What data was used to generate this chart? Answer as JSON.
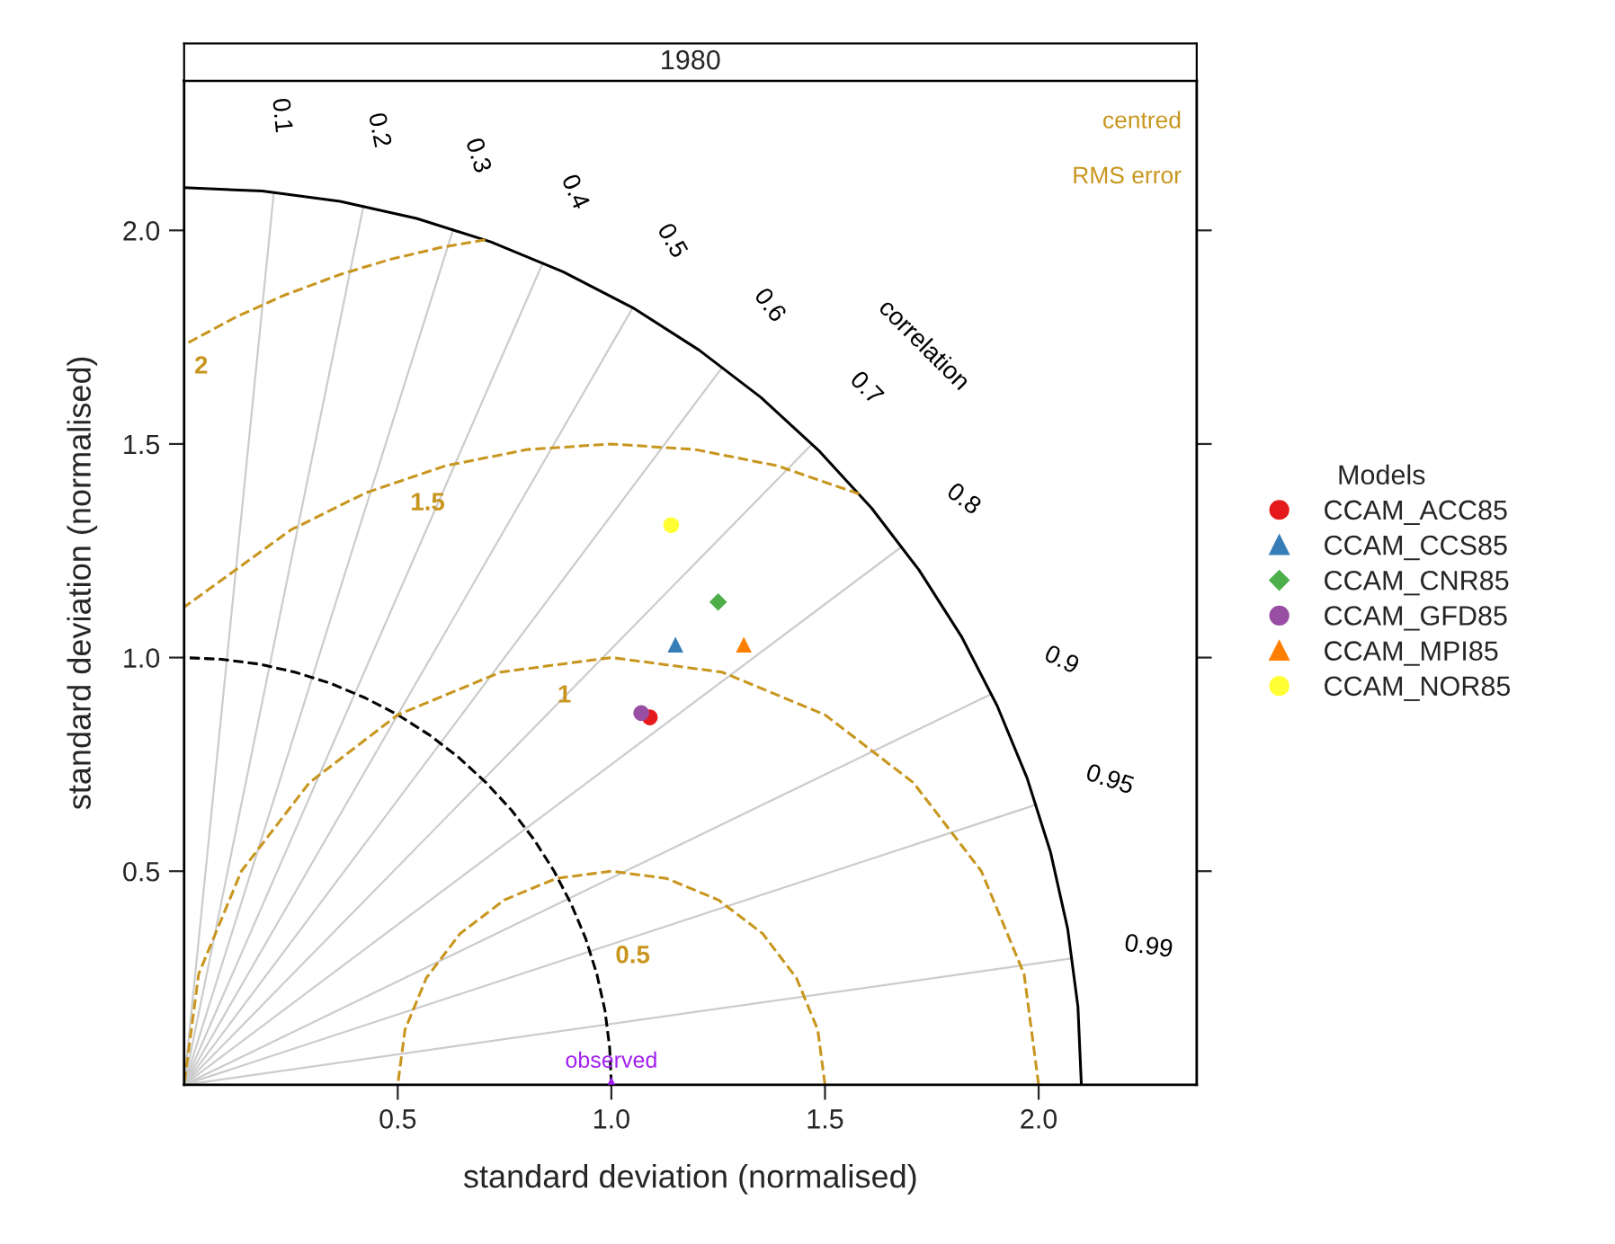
{
  "chart_data": {
    "type": "scatter",
    "title": "1980",
    "xlabel": "standard deviation (normalised)",
    "ylabel": "standard deviation (normalised)",
    "legend_title": "Models",
    "legend": "right",
    "grid": false,
    "xlim": [
      0,
      2.37
    ],
    "ylim": [
      0,
      2.35
    ],
    "xticks": [
      {
        "value": 0.5,
        "label": "0.5"
      },
      {
        "value": 1.0,
        "label": "1.0"
      },
      {
        "value": 1.5,
        "label": "1.5"
      },
      {
        "value": 2.0,
        "label": "2.0"
      }
    ],
    "yticks": [
      {
        "value": 0.5,
        "label": "0.5"
      },
      {
        "value": 1.0,
        "label": "1.0"
      },
      {
        "value": 1.5,
        "label": "1.5"
      },
      {
        "value": 2.0,
        "label": "2.0"
      }
    ],
    "series": [
      {
        "type": "line",
        "color": "#000000",
        "line_style": "solid",
        "marker": "none",
        "x": [
          2.1,
          2.092,
          2.068,
          2.028,
          1.973,
          1.903,
          1.819,
          1.72,
          1.609,
          1.485,
          1.35,
          1.205,
          1.05,
          0.887,
          0.718,
          0.544,
          0.365,
          0.183,
          0
        ],
        "values": [
          0,
          0.183,
          0.365,
          0.544,
          0.718,
          0.887,
          1.05,
          1.205,
          1.35,
          1.485,
          1.609,
          1.72,
          1.819,
          1.903,
          1.973,
          2.028,
          2.068,
          2.092,
          2.1
        ]
      },
      {
        "type": "line",
        "color": "#000000",
        "line_style": "dashed",
        "marker": "none",
        "x": [
          1,
          0.996,
          0.985,
          0.966,
          0.94,
          0.906,
          0.866,
          0.819,
          0.766,
          0.707,
          0.643,
          0.574,
          0.5,
          0.423,
          0.342,
          0.259,
          0.174,
          0.087,
          0
        ],
        "values": [
          0,
          0.087,
          0.174,
          0.259,
          0.342,
          0.423,
          0.5,
          0.574,
          0.643,
          0.707,
          0.766,
          0.819,
          0.866,
          0.906,
          0.94,
          0.966,
          0.985,
          0.996,
          1
        ]
      },
      {
        "type": "line",
        "color": "#c8961e",
        "line_style": "dashed",
        "marker": "none",
        "x": [
          1.5,
          1.483,
          1.433,
          1.354,
          1.25,
          1.129,
          1,
          0.871,
          0.75,
          0.646,
          0.567,
          0.517,
          0.5
        ],
        "values": [
          0,
          0.129,
          0.25,
          0.354,
          0.433,
          0.483,
          0.5,
          0.483,
          0.433,
          0.354,
          0.25,
          0.129,
          0
        ]
      },
      {
        "type": "line",
        "color": "#c8961e",
        "line_style": "dashed",
        "marker": "none",
        "x": [
          2,
          1.966,
          1.866,
          1.707,
          1.5,
          1.259,
          1,
          0.741,
          0.5,
          0.293,
          0.134,
          0.034,
          0
        ],
        "values": [
          0,
          0.259,
          0.5,
          0.707,
          0.866,
          0.966,
          1,
          0.966,
          0.866,
          0.707,
          0.5,
          0.259,
          0
        ]
      },
      {
        "type": "line",
        "color": "#c8961e",
        "line_style": "dashed",
        "marker": "none",
        "x": [
          1.58,
          1.388,
          1.196,
          1,
          0.804,
          0.612,
          0.426,
          0.25,
          0
        ],
        "values": [
          1.383,
          1.449,
          1.487,
          1.5,
          1.487,
          1.449,
          1.386,
          1.299,
          1.118
        ]
      },
      {
        "type": "line",
        "color": "#c8961e",
        "line_style": "dashed",
        "marker": "none",
        "x": [
          0.705,
          0.601,
          0.482,
          0.366,
          0.234,
          0.123,
          0
        ],
        "values": [
          1.978,
          1.96,
          1.932,
          1.897,
          1.848,
          1.798,
          1.732
        ]
      },
      {
        "type": "line",
        "color": "#cccccc",
        "line_style": "solid",
        "marker": "none",
        "x": [
          0,
          0.21
        ],
        "values": [
          0,
          2.089
        ]
      },
      {
        "type": "line",
        "color": "#cccccc",
        "line_style": "solid",
        "marker": "none",
        "x": [
          0,
          0.42
        ],
        "values": [
          0,
          2.058
        ]
      },
      {
        "type": "line",
        "color": "#cccccc",
        "line_style": "solid",
        "marker": "none",
        "x": [
          0,
          0.63
        ],
        "values": [
          0,
          2.003
        ]
      },
      {
        "type": "line",
        "color": "#cccccc",
        "line_style": "solid",
        "marker": "none",
        "x": [
          0,
          0.84
        ],
        "values": [
          0,
          1.925
        ]
      },
      {
        "type": "line",
        "color": "#cccccc",
        "line_style": "solid",
        "marker": "none",
        "x": [
          0,
          1.05
        ],
        "values": [
          0,
          1.819
        ]
      },
      {
        "type": "line",
        "color": "#cccccc",
        "line_style": "solid",
        "marker": "none",
        "x": [
          0,
          1.26
        ],
        "values": [
          0,
          1.68
        ]
      },
      {
        "type": "line",
        "color": "#cccccc",
        "line_style": "solid",
        "marker": "none",
        "x": [
          0,
          1.47
        ],
        "values": [
          0,
          1.5
        ]
      },
      {
        "type": "line",
        "color": "#cccccc",
        "line_style": "solid",
        "marker": "none",
        "x": [
          0,
          1.68
        ],
        "values": [
          0,
          1.26
        ]
      },
      {
        "type": "line",
        "color": "#cccccc",
        "line_style": "solid",
        "marker": "none",
        "x": [
          0,
          1.89
        ],
        "values": [
          0,
          0.915
        ]
      },
      {
        "type": "line",
        "color": "#cccccc",
        "line_style": "solid",
        "marker": "none",
        "x": [
          0,
          1.995
        ],
        "values": [
          0,
          0.656
        ]
      },
      {
        "type": "line",
        "color": "#cccccc",
        "line_style": "solid",
        "marker": "none",
        "x": [
          0,
          2.079
        ],
        "values": [
          0,
          0.296
        ]
      },
      {
        "name": "CCAM_ACC85",
        "color": "#e41a1c",
        "marker": "circle",
        "x": [
          1.09
        ],
        "values": [
          0.86
        ]
      },
      {
        "name": "CCAM_CCS85",
        "color": "#377eb8",
        "marker": "triangle",
        "x": [
          1.15
        ],
        "values": [
          1.03
        ]
      },
      {
        "name": "CCAM_CNR85",
        "color": "#4daf4a",
        "marker": "diamond",
        "x": [
          1.25
        ],
        "values": [
          1.13
        ]
      },
      {
        "name": "CCAM_GFD85",
        "color": "#984ea3",
        "marker": "circle",
        "x": [
          1.07
        ],
        "values": [
          0.87
        ]
      },
      {
        "name": "CCAM_MPI85",
        "color": "#ff7f00",
        "marker": "triangle",
        "x": [
          1.31
        ],
        "values": [
          1.03
        ]
      },
      {
        "name": "CCAM_NOR85",
        "color": "#ffff33",
        "marker": "circle",
        "x": [
          1.14
        ],
        "values": [
          1.31
        ]
      },
      {
        "color": "#a020f0",
        "marker": "triangle",
        "x": [
          1.0
        ],
        "values": [
          0.0
        ]
      }
    ],
    "annotations": [
      "observed",
      "0.1",
      "0.2",
      "0.3",
      "0.4",
      "0.5",
      "0.6",
      "0.7",
      "0.8",
      "0.9",
      "0.95",
      "0.99",
      "correlation",
      "2",
      "1.5",
      "1",
      "0.5",
      "centred",
      "RMS error"
    ]
  }
}
